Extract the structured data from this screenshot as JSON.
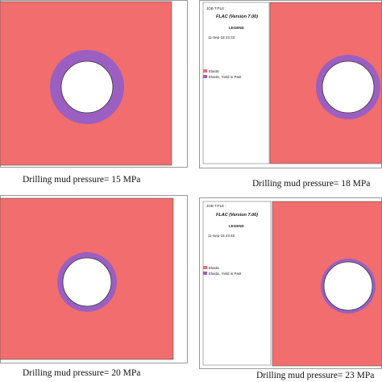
{
  "panels": [
    {
      "caption": "Drilling mud pressure= 15 MPa"
    },
    {
      "caption": "Drilling mud pressure= 18 MPa",
      "job_title": "JOB TITLE :",
      "program": "FLAC (Version 7.00)",
      "legend_title": "LEGEND",
      "date": "11-Sep-18 23:33",
      "legend_items": [
        "Elastic",
        "Elastic, Yield in Past"
      ]
    },
    {
      "caption": "Drilling mud pressure= 20 MPa"
    },
    {
      "caption": "Drilling mud pressure= 23 MPa",
      "job_title": "JOB TITLE :",
      "program": "FLAC (Version 7.00)",
      "legend_title": "LEGEND",
      "date": "11-Sep-18 23:40",
      "legend_items": [
        "Elastic",
        "Elastic, Yield in Past"
      ]
    }
  ]
}
